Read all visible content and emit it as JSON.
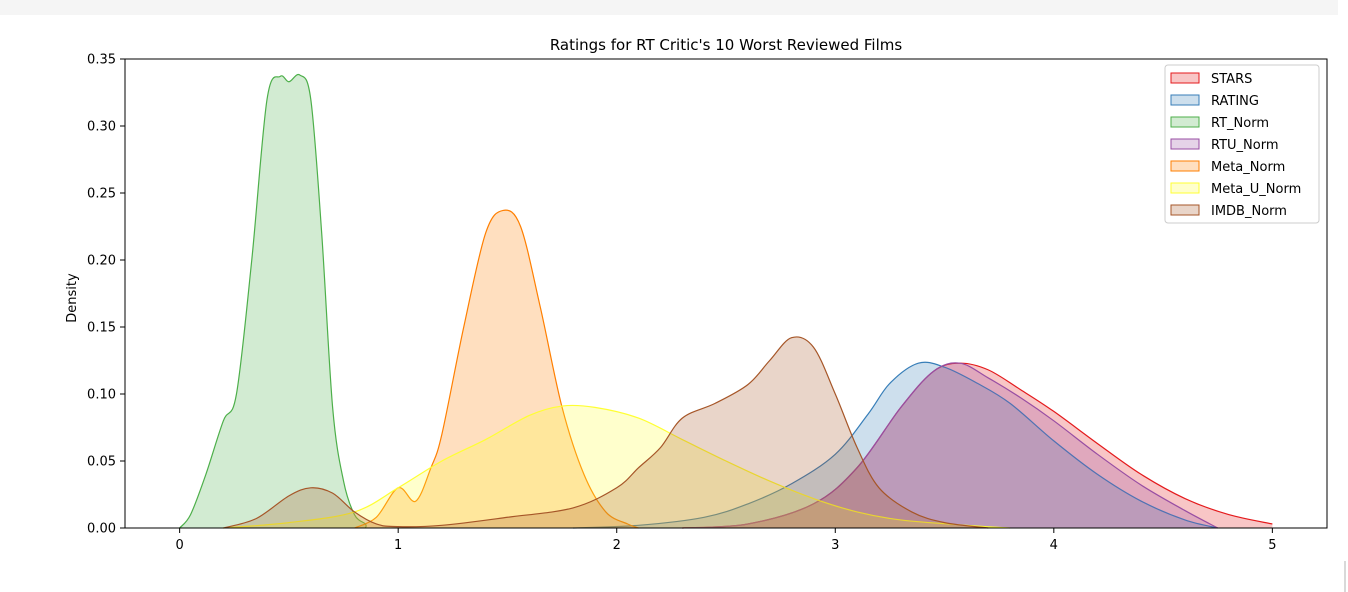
{
  "chart_data": {
    "type": "area",
    "title": "Ratings for RT Critic's 10 Worst Reviewed Films",
    "xlabel": "",
    "ylabel": "Density",
    "xlim": [
      -0.25,
      5.25
    ],
    "ylim": [
      0,
      0.35
    ],
    "xticks": [
      0,
      1,
      2,
      3,
      4,
      5
    ],
    "yticks": [
      0.0,
      0.05,
      0.1,
      0.15,
      0.2,
      0.25,
      0.3,
      0.35
    ],
    "ytick_labels": [
      "0.00",
      "0.05",
      "0.10",
      "0.15",
      "0.20",
      "0.25",
      "0.30",
      "0.35"
    ],
    "xtick_labels": [
      "0",
      "1",
      "2",
      "3",
      "4",
      "5"
    ],
    "grid": false,
    "legend_position": "top-right",
    "series": [
      {
        "name": "STARS",
        "color": "#e41a1c",
        "points": [
          [
            2.3,
            0
          ],
          [
            2.6,
            0.003
          ],
          [
            2.9,
            0.018
          ],
          [
            3.1,
            0.045
          ],
          [
            3.3,
            0.09
          ],
          [
            3.45,
            0.117
          ],
          [
            3.57,
            0.123
          ],
          [
            3.7,
            0.118
          ],
          [
            3.85,
            0.103
          ],
          [
            4.0,
            0.087
          ],
          [
            4.2,
            0.063
          ],
          [
            4.4,
            0.04
          ],
          [
            4.6,
            0.022
          ],
          [
            4.8,
            0.01
          ],
          [
            5.0,
            0.003
          ]
        ]
      },
      {
        "name": "RATING",
        "color": "#377eb8",
        "points": [
          [
            1.8,
            0
          ],
          [
            2.1,
            0.002
          ],
          [
            2.4,
            0.008
          ],
          [
            2.6,
            0.018
          ],
          [
            2.8,
            0.033
          ],
          [
            3.0,
            0.055
          ],
          [
            3.15,
            0.085
          ],
          [
            3.25,
            0.108
          ],
          [
            3.38,
            0.123
          ],
          [
            3.5,
            0.12
          ],
          [
            3.65,
            0.108
          ],
          [
            3.8,
            0.093
          ],
          [
            4.0,
            0.065
          ],
          [
            4.2,
            0.04
          ],
          [
            4.4,
            0.02
          ],
          [
            4.6,
            0.006
          ],
          [
            4.75,
            0
          ]
        ]
      },
      {
        "name": "RT_Norm",
        "color": "#4daf4a",
        "points": [
          [
            0,
            0
          ],
          [
            0.05,
            0.01
          ],
          [
            0.12,
            0.04
          ],
          [
            0.2,
            0.08
          ],
          [
            0.26,
            0.1
          ],
          [
            0.33,
            0.2
          ],
          [
            0.4,
            0.32
          ],
          [
            0.46,
            0.337
          ],
          [
            0.5,
            0.333
          ],
          [
            0.55,
            0.338
          ],
          [
            0.6,
            0.32
          ],
          [
            0.65,
            0.22
          ],
          [
            0.7,
            0.09
          ],
          [
            0.75,
            0.035
          ],
          [
            0.8,
            0.01
          ],
          [
            0.85,
            0.003
          ],
          [
            0.85,
            0
          ]
        ]
      },
      {
        "name": "RTU_Norm",
        "color": "#984ea3",
        "points": [
          [
            2.3,
            0
          ],
          [
            2.6,
            0.003
          ],
          [
            2.9,
            0.018
          ],
          [
            3.1,
            0.045
          ],
          [
            3.3,
            0.09
          ],
          [
            3.45,
            0.117
          ],
          [
            3.57,
            0.123
          ],
          [
            3.7,
            0.112
          ],
          [
            3.85,
            0.097
          ],
          [
            4.0,
            0.08
          ],
          [
            4.2,
            0.055
          ],
          [
            4.4,
            0.032
          ],
          [
            4.6,
            0.013
          ],
          [
            4.75,
            0
          ]
        ]
      },
      {
        "name": "Meta_Norm",
        "color": "#ff7f00",
        "points": [
          [
            0.8,
            0
          ],
          [
            0.9,
            0.008
          ],
          [
            1.0,
            0.03
          ],
          [
            1.08,
            0.02
          ],
          [
            1.15,
            0.045
          ],
          [
            1.2,
            0.07
          ],
          [
            1.3,
            0.15
          ],
          [
            1.4,
            0.22
          ],
          [
            1.48,
            0.237
          ],
          [
            1.56,
            0.225
          ],
          [
            1.65,
            0.165
          ],
          [
            1.75,
            0.09
          ],
          [
            1.85,
            0.04
          ],
          [
            1.95,
            0.012
          ],
          [
            2.05,
            0.003
          ],
          [
            2.1,
            0
          ]
        ]
      },
      {
        "name": "Meta_U_Norm",
        "color": "#ffff33",
        "points": [
          [
            0.2,
            0
          ],
          [
            0.5,
            0.004
          ],
          [
            0.8,
            0.012
          ],
          [
            1.0,
            0.03
          ],
          [
            1.2,
            0.05
          ],
          [
            1.4,
            0.066
          ],
          [
            1.6,
            0.084
          ],
          [
            1.75,
            0.091
          ],
          [
            1.9,
            0.09
          ],
          [
            2.1,
            0.082
          ],
          [
            2.3,
            0.066
          ],
          [
            2.5,
            0.05
          ],
          [
            2.7,
            0.035
          ],
          [
            2.9,
            0.022
          ],
          [
            3.1,
            0.012
          ],
          [
            3.3,
            0.006
          ],
          [
            3.6,
            0.002
          ],
          [
            3.8,
            0
          ]
        ]
      },
      {
        "name": "IMDB_Norm",
        "color": "#a65628",
        "points": [
          [
            0.2,
            0
          ],
          [
            0.35,
            0.007
          ],
          [
            0.5,
            0.024
          ],
          [
            0.6,
            0.03
          ],
          [
            0.7,
            0.026
          ],
          [
            0.8,
            0.012
          ],
          [
            0.9,
            0.003
          ],
          [
            1.0,
            0.001
          ],
          [
            1.2,
            0.002
          ],
          [
            1.5,
            0.008
          ],
          [
            1.8,
            0.015
          ],
          [
            2.0,
            0.03
          ],
          [
            2.1,
            0.045
          ],
          [
            2.2,
            0.06
          ],
          [
            2.3,
            0.082
          ],
          [
            2.45,
            0.093
          ],
          [
            2.6,
            0.107
          ],
          [
            2.7,
            0.125
          ],
          [
            2.8,
            0.142
          ],
          [
            2.9,
            0.135
          ],
          [
            3.0,
            0.1
          ],
          [
            3.1,
            0.06
          ],
          [
            3.2,
            0.03
          ],
          [
            3.35,
            0.012
          ],
          [
            3.5,
            0.004
          ],
          [
            3.7,
            0
          ]
        ]
      }
    ]
  }
}
